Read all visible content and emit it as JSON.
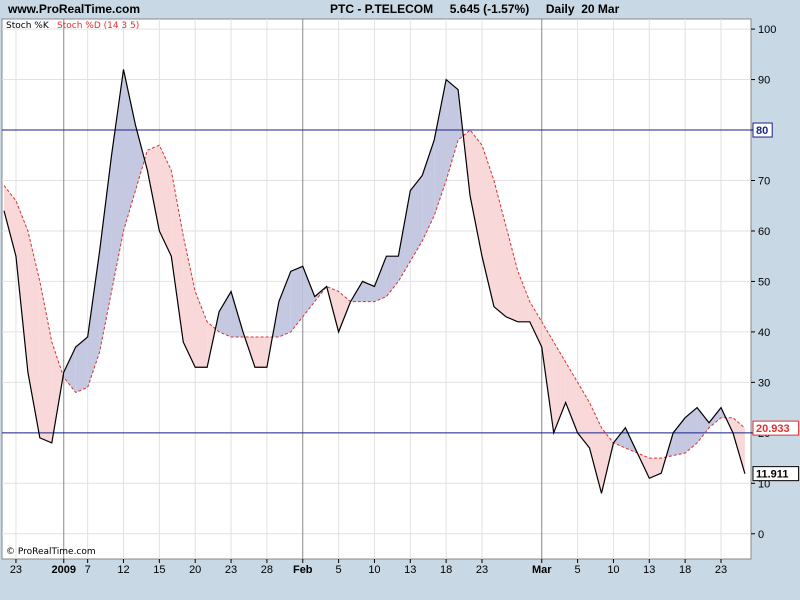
{
  "header": {
    "site": "www.ProRealTime.com",
    "symbol": "PTC - P.TELECOM",
    "price": "5.645",
    "change": "(-1.57%)",
    "period": "Daily",
    "date": "20 Mar"
  },
  "footer": {
    "copyright": "© ProRealTime.com"
  },
  "colors": {
    "k_line": "#000000",
    "d_line": "#e03030",
    "fill_k_above": "#c4c8e0",
    "fill_d_above": "#f8d8d8",
    "ref_line": "#1a2288"
  },
  "chart_data": {
    "type": "line",
    "legend": {
      "k": "Stoch %K",
      "d": "Stoch %D (14 3 5)"
    },
    "ylim": [
      -5,
      102
    ],
    "y_ticks": [
      0,
      10,
      20,
      30,
      40,
      50,
      60,
      70,
      80,
      90,
      100
    ],
    "ref_lines": [
      80,
      20
    ],
    "x_tick_labels": [
      {
        "label": "23",
        "i": 1,
        "bold": false
      },
      {
        "label": "2009",
        "i": 5,
        "bold": true
      },
      {
        "label": "7",
        "i": 7,
        "bold": false
      },
      {
        "label": "12",
        "i": 10,
        "bold": false
      },
      {
        "label": "15",
        "i": 13,
        "bold": false
      },
      {
        "label": "20",
        "i": 16,
        "bold": false
      },
      {
        "label": "23",
        "i": 19,
        "bold": false
      },
      {
        "label": "28",
        "i": 22,
        "bold": false
      },
      {
        "label": "Feb",
        "i": 25,
        "bold": true
      },
      {
        "label": "5",
        "i": 28,
        "bold": false
      },
      {
        "label": "10",
        "i": 31,
        "bold": false
      },
      {
        "label": "13",
        "i": 34,
        "bold": false
      },
      {
        "label": "18",
        "i": 37,
        "bold": false
      },
      {
        "label": "23",
        "i": 40,
        "bold": false
      },
      {
        "label": "Mar",
        "i": 45,
        "bold": true
      },
      {
        "label": "5",
        "i": 48,
        "bold": false
      },
      {
        "label": "10",
        "i": 51,
        "bold": false
      },
      {
        "label": "13",
        "i": 54,
        "bold": false
      },
      {
        "label": "18",
        "i": 57,
        "bold": false
      },
      {
        "label": "23",
        "i": 60,
        "bold": false
      }
    ],
    "k_values": [
      64,
      55,
      32,
      19,
      18,
      32,
      37,
      39,
      56,
      75,
      92,
      81,
      72,
      60,
      55,
      38,
      33,
      33,
      44,
      48,
      40,
      33,
      33,
      46,
      52,
      53,
      47,
      49,
      40,
      46,
      50,
      49,
      55,
      55,
      68,
      71,
      78,
      90,
      88,
      67,
      55,
      45,
      43,
      42,
      42,
      37,
      20,
      26,
      20,
      17,
      8,
      18,
      21,
      16,
      11,
      12,
      20,
      23,
      25,
      22,
      25,
      20,
      11.911
    ],
    "d_values": [
      69,
      66,
      60,
      50,
      38,
      31,
      28,
      29,
      36,
      48,
      60,
      68,
      76,
      77,
      72,
      59,
      48,
      42,
      40,
      39,
      39,
      39,
      39,
      39,
      40,
      43,
      46,
      49,
      48,
      46,
      46,
      46,
      47,
      50,
      54,
      58,
      63,
      70,
      78,
      80,
      77,
      70,
      61,
      52,
      46,
      42,
      38,
      34,
      30,
      26,
      21,
      18,
      17,
      16,
      15,
      15,
      15.5,
      16,
      18,
      21,
      23,
      23,
      20.933
    ],
    "last_k": "11.911",
    "last_d": "20.933",
    "ref_label": "80",
    "ref_label_value": 80
  }
}
